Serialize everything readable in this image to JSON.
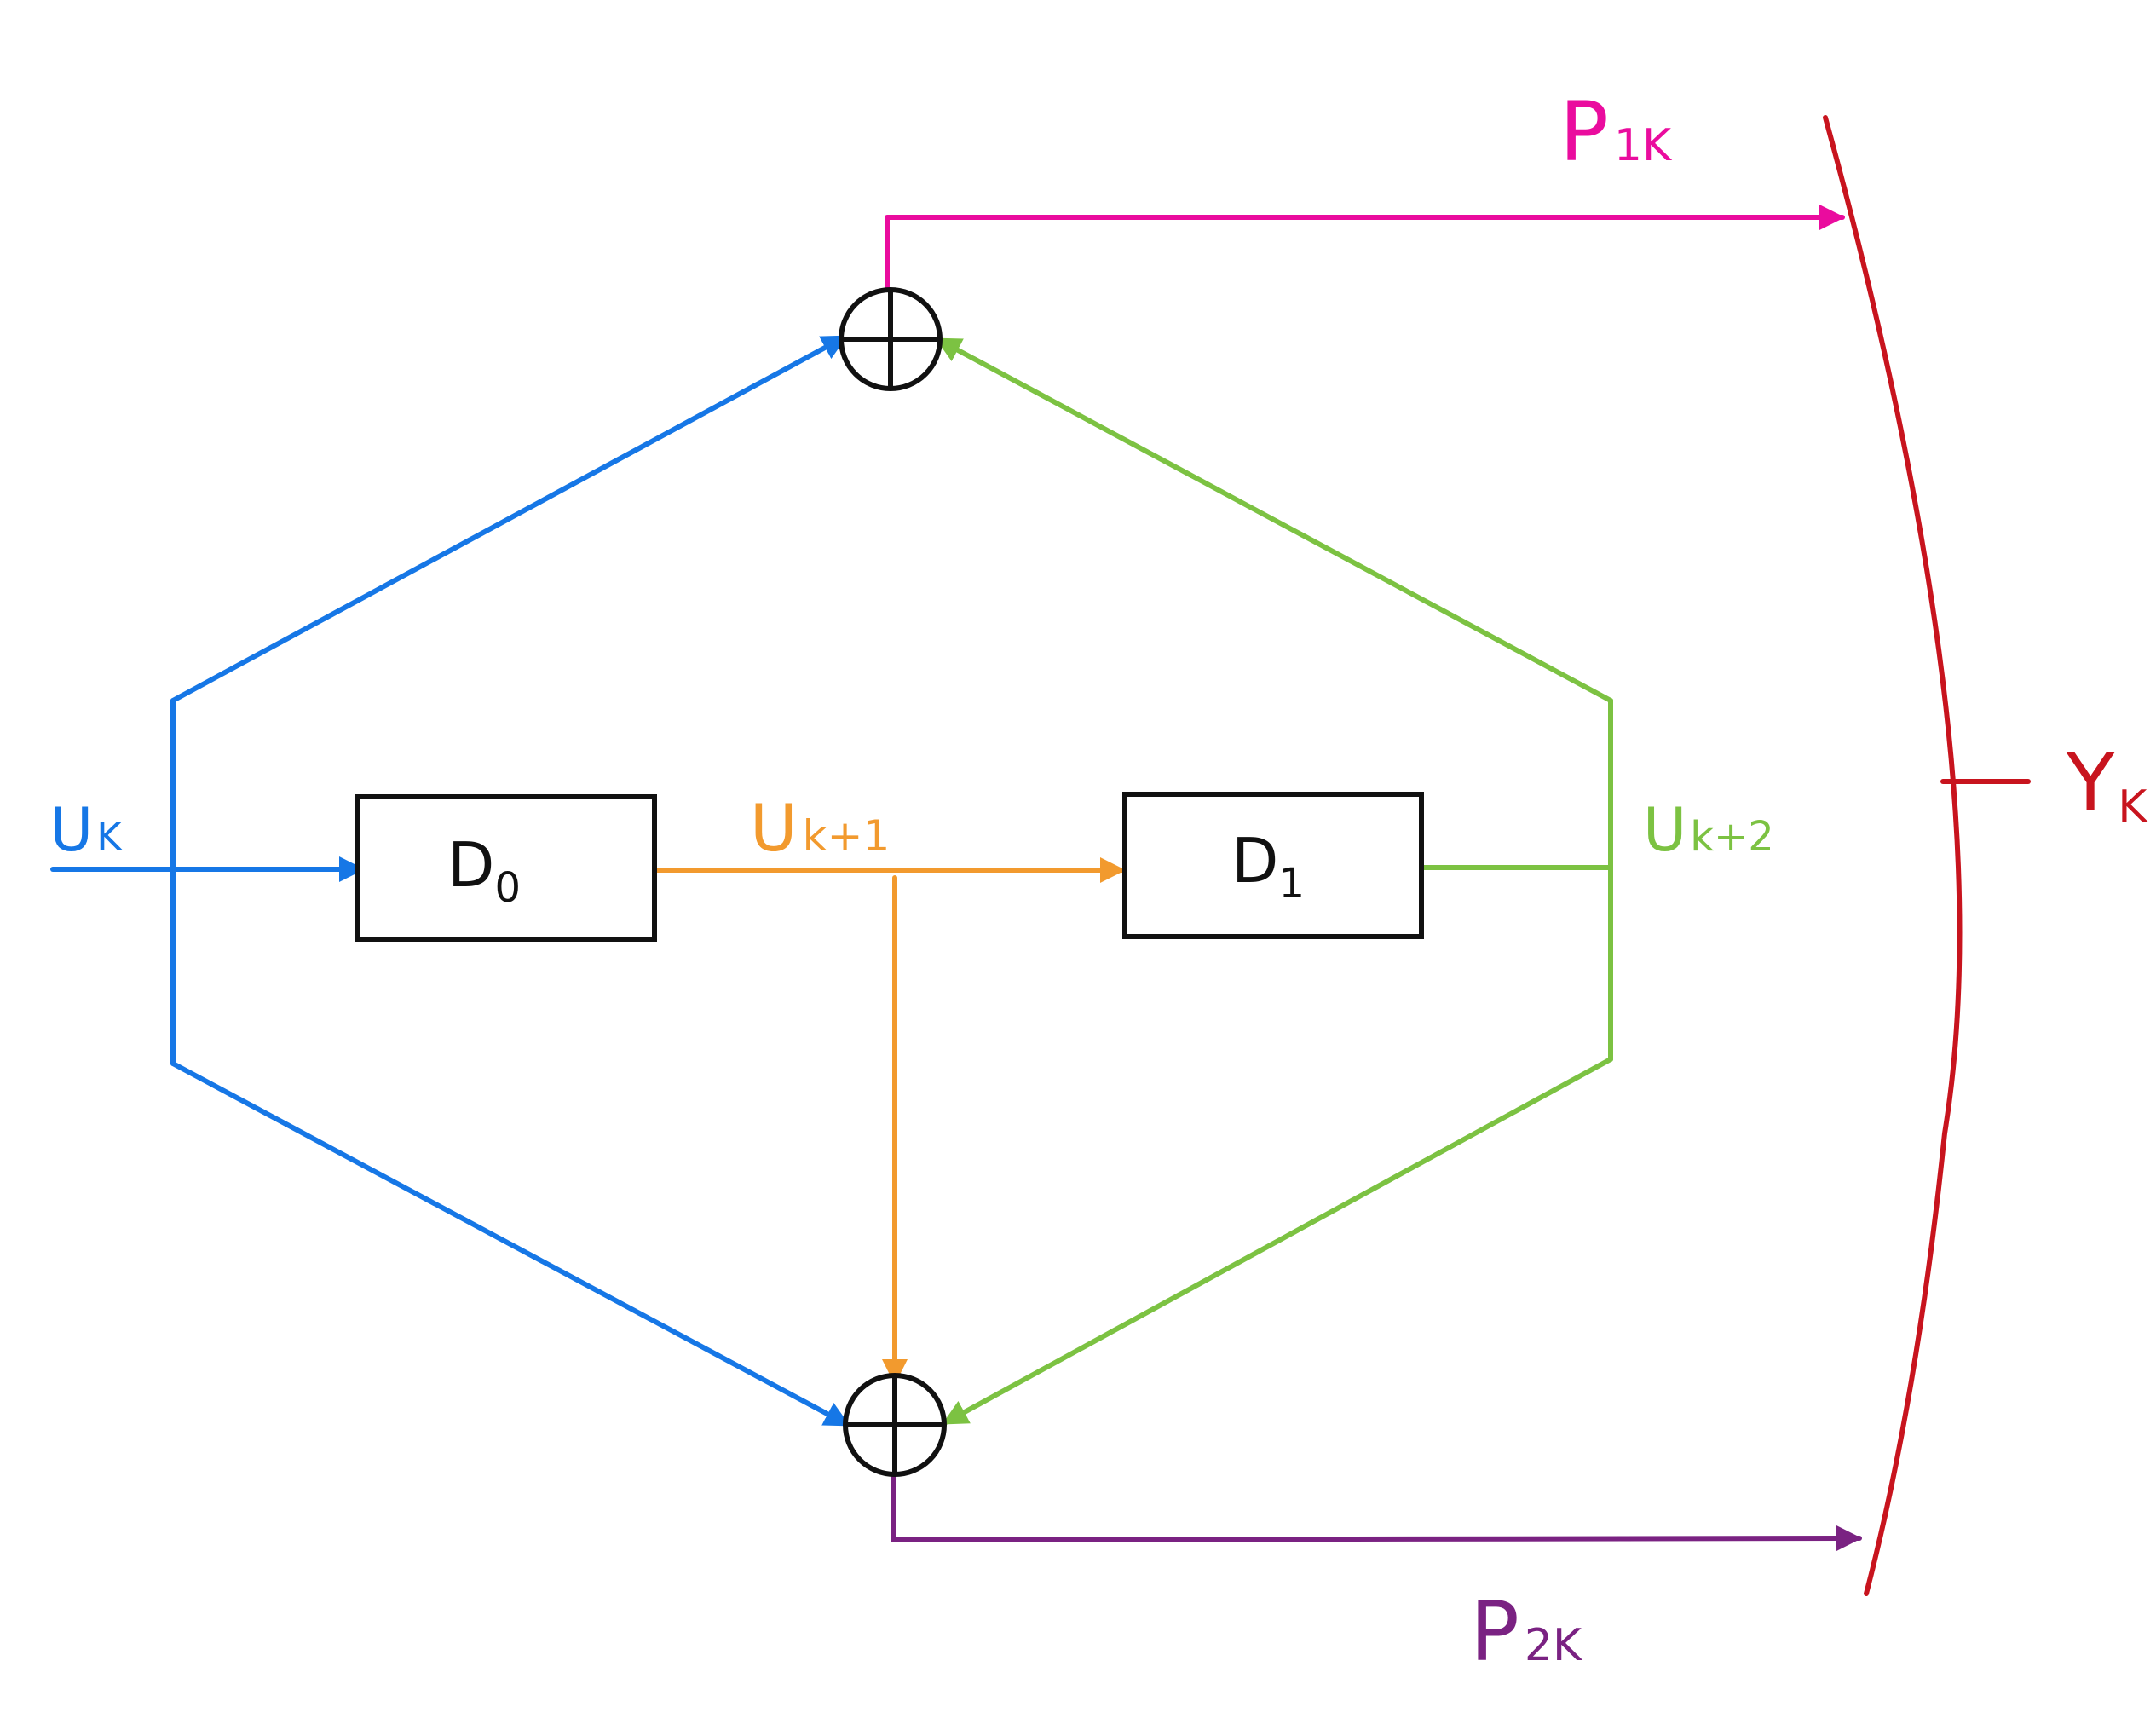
{
  "colors": {
    "input": "#1677e6",
    "state1": "#f29a2e",
    "state2": "#7cc242",
    "parity1": "#ea0c9e",
    "parity2": "#7a2282",
    "output": "#c8141e",
    "ink": "#111111"
  },
  "labels": {
    "input": {
      "base": "U",
      "sub": "K"
    },
    "state1": {
      "base": "U",
      "sub": "k+1"
    },
    "state2": {
      "base": "U",
      "sub": "k+2"
    },
    "delay0": {
      "base": "D",
      "sub": "0"
    },
    "delay1": {
      "base": "D",
      "sub": "1"
    },
    "parity1": {
      "base": "P",
      "sub": "1K"
    },
    "parity2": {
      "base": "P",
      "sub": "2K"
    },
    "output": {
      "base": "Y",
      "sub": "K"
    }
  },
  "nodes": {
    "adder_top": {
      "symbol": "xor"
    },
    "adder_bottom": {
      "symbol": "xor"
    }
  }
}
